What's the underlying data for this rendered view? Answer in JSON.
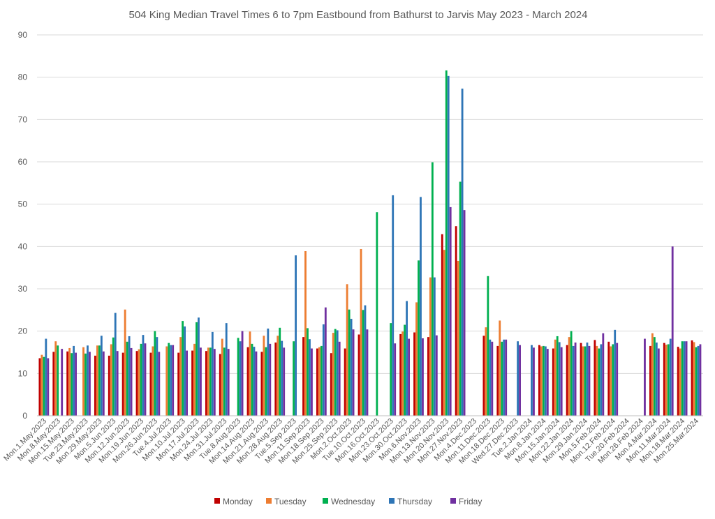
{
  "chart_data": {
    "type": "bar",
    "title": "504 King Median Travel Times 6 to 7pm Eastbound from Bathurst to Jarvis May 2023 - March 2024",
    "ylim": [
      0,
      90
    ],
    "yticks": [
      0,
      10,
      20,
      30,
      40,
      50,
      60,
      70,
      80,
      90
    ],
    "grid": true,
    "legend_position": "bottom",
    "categories": [
      "Mon.1.May.2023",
      "Mon.8.May.2023",
      "Mon.15.May.2023",
      "Tue.23.May.2023",
      "Mon.29.May.2023",
      "Mon.5.Jun.2023",
      "Mon.12.Jun.2023",
      "Mon.19.Jun.2023",
      "Mon.26.Jun.2023",
      "Tue.4.Jul.2023",
      "Mon.10.Jul.2023",
      "Mon.17.Jul.2023",
      "Mon.24.Jul.2023",
      "Mon.31.Jul.2023",
      "Tue.8.Aug.2023",
      "Mon.14.Aug.2023",
      "Mon.21.Aug.2023",
      "Mon.28.Aug.2023",
      "Tue.5.Sep.2023",
      "Mon.11.Sep.2023",
      "Mon.18.Sep.2023",
      "Mon.25.Sep.2023",
      "Mon.2.Oct.2023",
      "Tue.10.Oct.2023",
      "Mon.16.Oct.2023",
      "Mon.23.Oct.2023",
      "Mon.30.Oct.2023",
      "Mon.6.Nov.2023",
      "Mon.13.Nov.2023",
      "Mon.20.Nov.2023",
      "Mon.27.Nov.2023",
      "Mon.4.Dec.2023",
      "Mon.11.Dec.2023",
      "Mon.18.Dec.2023",
      "Wed.27.Dec.2023",
      "Tue.2.Jan.2024",
      "Mon.8.Jan.2024",
      "Mon.15.Jan.2024",
      "Mon.22.Jan.2024",
      "Mon.29.Jan.2024",
      "Mon.5.Feb.2024",
      "Mon.12.Feb.2024",
      "Tue.20.Feb.2024",
      "Mon.26.Feb.2024",
      "Mon.4.Mar.2024",
      "Mon.11.Mar.2024",
      "Mon.18.Mar.2024",
      "Mon.25.Mar.2024"
    ],
    "series": [
      {
        "name": "Monday",
        "color": "#c00000",
        "values": [
          13.6,
          15.1,
          15.2,
          null,
          14.2,
          14.2,
          14.9,
          15.3,
          14.9,
          null,
          14.9,
          15.4,
          15.3,
          14.6,
          null,
          16.2,
          15.1,
          17.3,
          null,
          18.6,
          15.9,
          14.8,
          15.9,
          19.2,
          null,
          null,
          19.3,
          19.7,
          18.6,
          42.9,
          44.8,
          null,
          18.9,
          16.5,
          null,
          null,
          16.7,
          15.9,
          16.7,
          17.2,
          17.9,
          17.5,
          null,
          null,
          16.5,
          17.2,
          16.3,
          17.8
        ]
      },
      {
        "name": "Tuesday",
        "color": "#ed7d31",
        "values": [
          14.4,
          17.6,
          16.0,
          16.2,
          16.6,
          16.9,
          25.1,
          15.7,
          16.4,
          16.4,
          18.6,
          17.0,
          16.1,
          18.2,
          null,
          19.9,
          18.9,
          18.9,
          null,
          38.9,
          16.2,
          19.6,
          31.1,
          39.4,
          null,
          null,
          19.9,
          26.8,
          32.7,
          39.2,
          36.6,
          null,
          20.9,
          22.5,
          null,
          null,
          16.4,
          18.0,
          18.6,
          16.4,
          16.5,
          16.4,
          null,
          null,
          19.5,
          16.8,
          15.9,
          17.4
        ]
      },
      {
        "name": "Wednesday",
        "color": "#00b050",
        "values": [
          13.9,
          16.6,
          14.8,
          14.7,
          16.6,
          18.5,
          17.5,
          17.0,
          20.0,
          17.2,
          22.4,
          22.1,
          16.1,
          16.1,
          18.4,
          17.0,
          16.2,
          20.8,
          17.6,
          20.7,
          16.5,
          20.5,
          25.1,
          25.0,
          48.1,
          21.9,
          21.5,
          36.7,
          59.9,
          81.6,
          55.3,
          null,
          33.0,
          17.5,
          null,
          null,
          16.5,
          18.8,
          20.0,
          16.4,
          15.9,
          16.9,
          null,
          null,
          18.6,
          16.9,
          17.6,
          16.2
        ]
      },
      {
        "name": "Thursday",
        "color": "#2e75b6",
        "values": [
          18.2,
          null,
          16.5,
          16.6,
          18.9,
          24.3,
          18.8,
          19.1,
          18.6,
          16.7,
          21.1,
          23.2,
          19.8,
          21.9,
          17.6,
          16.3,
          20.6,
          17.7,
          37.9,
          18.1,
          21.6,
          20.2,
          22.9,
          26.1,
          null,
          52.1,
          27.1,
          51.7,
          32.7,
          80.3,
          77.3,
          null,
          18.0,
          18.0,
          17.6,
          16.7,
          16.4,
          17.4,
          16.5,
          17.3,
          16.9,
          20.3,
          null,
          null,
          17.3,
          18.2,
          17.6,
          16.5
        ]
      },
      {
        "name": "Friday",
        "color": "#7030a0",
        "values": [
          13.6,
          15.8,
          14.9,
          15.1,
          15.2,
          15.3,
          16.0,
          17.1,
          15.1,
          16.7,
          15.4,
          16.1,
          15.8,
          15.8,
          20.0,
          15.2,
          17.0,
          16.1,
          null,
          15.9,
          25.6,
          17.5,
          20.4,
          20.4,
          null,
          17.1,
          18.2,
          18.3,
          19.0,
          49.3,
          48.6,
          null,
          17.5,
          18.0,
          16.7,
          16.1,
          15.8,
          16.2,
          17.3,
          16.5,
          19.5,
          17.2,
          null,
          18.2,
          15.9,
          40.0,
          17.6,
          16.9
        ]
      }
    ]
  }
}
